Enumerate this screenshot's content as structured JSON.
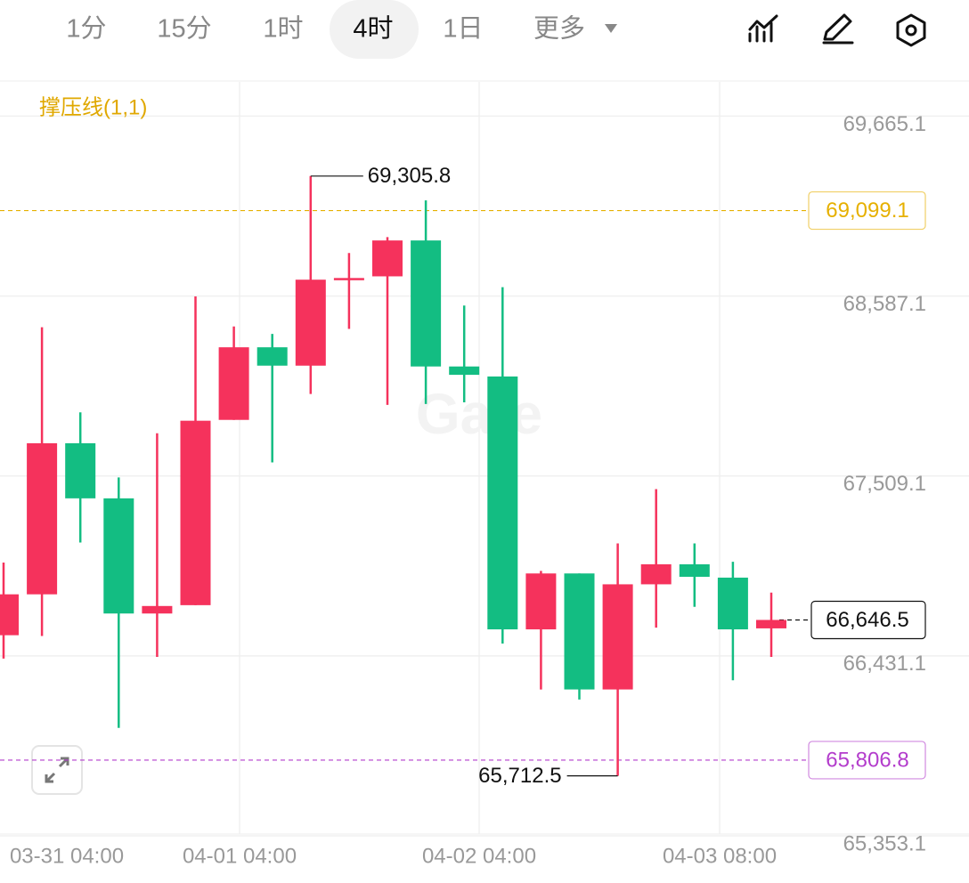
{
  "toolbar": {
    "tabs": [
      "1分",
      "15分",
      "1时",
      "4时",
      "1日",
      "更多"
    ],
    "selected": 3
  },
  "chart_data": {
    "type": "candlestick",
    "indicator": "撑压线(1,1)",
    "watermark": "Gate",
    "ylim": [
      65353.1,
      69870
    ],
    "yticks": [
      {
        "value": 69665.1,
        "label": "69,665.1"
      },
      {
        "value": 68587.1,
        "label": "68,587.1"
      },
      {
        "value": 67509.1,
        "label": "67,509.1"
      },
      {
        "value": 66431.1,
        "label": "66,431.1"
      },
      {
        "value": 65353.1,
        "label": "65,353.1"
      }
    ],
    "x_labels": [
      "03-31 04:00",
      "04-01 04:00",
      "04-02 04:00",
      "04-03 08:00"
    ],
    "grid": true,
    "up_color": "#f5325c",
    "down_color": "#13bd82",
    "candles": {
      "open": [
        66555,
        66800,
        67705,
        67375,
        66685,
        66735,
        67845,
        68280,
        68170,
        68685,
        68705,
        68920,
        68165,
        68105,
        66590,
        66925,
        66230,
        66860,
        66980,
        66900,
        66596
      ],
      "high": [
        66990,
        68400,
        67890,
        67500,
        67765,
        68585,
        68405,
        68360,
        69305.8,
        68845,
        68940,
        69160,
        68530,
        68640,
        66940,
        66925,
        67105,
        67430,
        67105,
        66995,
        66810
      ],
      "low": [
        66415,
        66550,
        67110,
        66000,
        66425,
        66735,
        67845,
        67590,
        68000,
        68390,
        67935,
        67940,
        67950,
        66505,
        66230,
        66170,
        65712.5,
        66600,
        66725,
        66285,
        66425
      ],
      "close": [
        66800,
        67705,
        67375,
        66685,
        66730,
        67840,
        68280,
        68170,
        68685,
        68695,
        68920,
        68165,
        68115,
        66590,
        66925,
        66230,
        66860,
        66980,
        66905,
        66590,
        66646.5
      ]
    },
    "high_marker": {
      "value": 69305.8,
      "label": "69,305.8"
    },
    "low_marker": {
      "value": 65712.5,
      "label": "65,712.5"
    },
    "price_lines": [
      {
        "value": 69099.1,
        "label": "69,099.1",
        "color": "#e6b000"
      },
      {
        "value": 65806.8,
        "label": "65,806.8",
        "color": "#b33ccc"
      },
      {
        "value": 66646.5,
        "label": "66,646.5",
        "color": "#111111"
      }
    ]
  }
}
